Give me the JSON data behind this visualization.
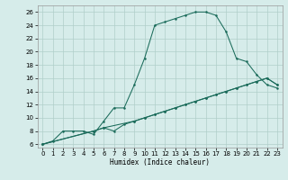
{
  "xlabel": "Humidex (Indice chaleur)",
  "bg_color": "#d6ecea",
  "grid_color": "#b0ceca",
  "line_color": "#1a6b5a",
  "xlim": [
    -0.5,
    23.5
  ],
  "ylim": [
    5.5,
    27
  ],
  "xticks": [
    0,
    1,
    2,
    3,
    4,
    5,
    6,
    7,
    8,
    9,
    10,
    11,
    12,
    13,
    14,
    15,
    16,
    17,
    18,
    19,
    20,
    21,
    22,
    23
  ],
  "yticks": [
    6,
    8,
    10,
    12,
    14,
    16,
    18,
    20,
    22,
    24,
    26
  ],
  "curve1_x": [
    0,
    1,
    2,
    3,
    4,
    5,
    6,
    7,
    8,
    9,
    10,
    11,
    12,
    13,
    14,
    15,
    16,
    17,
    18,
    19,
    20,
    21,
    22,
    23
  ],
  "curve1_y": [
    6,
    6.5,
    8,
    8.0,
    8.0,
    7.5,
    9.5,
    11.5,
    11.5,
    15.0,
    19.0,
    24.0,
    24.5,
    25.0,
    25.5,
    26.0,
    26.0,
    25.5,
    23.0,
    19.0,
    18.5,
    16.5,
    15.0,
    14.5
  ],
  "curve2_x": [
    0,
    5,
    6,
    7,
    8,
    9,
    10,
    11,
    12,
    13,
    14,
    15,
    16,
    17,
    18,
    19,
    20,
    21,
    22,
    23
  ],
  "curve2_y": [
    6,
    8.0,
    8.5,
    8.0,
    9.0,
    9.5,
    10.0,
    10.5,
    11.0,
    11.5,
    12.0,
    12.5,
    13.0,
    13.5,
    14.0,
    14.5,
    15.0,
    15.5,
    16.0,
    15.0
  ],
  "curve3_x": [
    0,
    5,
    6,
    9,
    10,
    11,
    12,
    13,
    14,
    15,
    16,
    17,
    18,
    19,
    20,
    21,
    22,
    23
  ],
  "curve3_y": [
    6,
    8.0,
    8.5,
    9.5,
    10.0,
    10.5,
    11.0,
    11.5,
    12.0,
    12.5,
    13.0,
    13.5,
    14.0,
    14.5,
    15.0,
    15.5,
    16.0,
    15.0
  ]
}
